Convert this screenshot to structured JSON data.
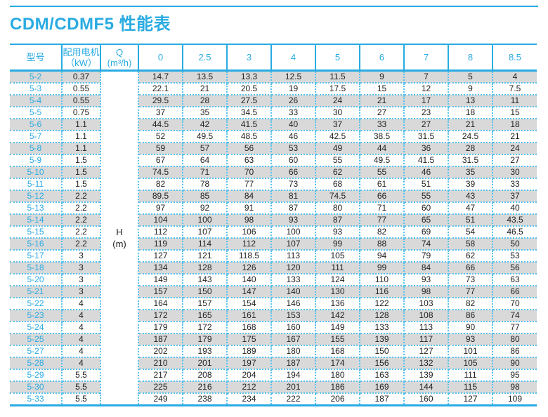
{
  "page": {
    "title": "CDM/CDMF5 性能表"
  },
  "colors": {
    "accent_blue": "#29abe2",
    "dotted_border_blue": "#58c2ed",
    "stripe_gray": "#d9d9d9",
    "data_text": "#222222"
  },
  "table": {
    "headers": {
      "model": "型号",
      "motor_line1": "配用电机",
      "motor_line2": "（kW）",
      "q_line1": "Q",
      "q_line2": "(m³/h)",
      "flow": [
        "0",
        "2.5",
        "3",
        "4",
        "5",
        "6",
        "7",
        "8",
        "8.5"
      ]
    },
    "h_column": {
      "line1": "H",
      "line2": "(m)"
    },
    "rows": [
      {
        "model": "5-2",
        "kw": "0.37",
        "values": [
          "14.7",
          "13.5",
          "13.3",
          "12.5",
          "11.5",
          "9",
          "7",
          "5",
          "4"
        ]
      },
      {
        "model": "5-3",
        "kw": "0.55",
        "values": [
          "22.1",
          "21",
          "20.5",
          "19",
          "17.5",
          "15",
          "12",
          "9",
          "7.5"
        ]
      },
      {
        "model": "5-4",
        "kw": "0.55",
        "values": [
          "29.5",
          "28",
          "27.5",
          "26",
          "24",
          "21",
          "17",
          "13",
          "11"
        ]
      },
      {
        "model": "5-5",
        "kw": "0.75",
        "values": [
          "37",
          "35",
          "34.5",
          "33",
          "30",
          "27",
          "23",
          "18",
          "15"
        ]
      },
      {
        "model": "5-6",
        "kw": "1.1",
        "values": [
          "44.5",
          "42",
          "41.5",
          "40",
          "37",
          "33",
          "27",
          "21",
          "18"
        ]
      },
      {
        "model": "5-7",
        "kw": "1.1",
        "values": [
          "52",
          "49.5",
          "48.5",
          "46",
          "42.5",
          "38.5",
          "31.5",
          "24.5",
          "21"
        ]
      },
      {
        "model": "5-8",
        "kw": "1.1",
        "values": [
          "59",
          "57",
          "56",
          "53",
          "49",
          "44",
          "36",
          "28",
          "24"
        ]
      },
      {
        "model": "5-9",
        "kw": "1.5",
        "values": [
          "67",
          "64",
          "63",
          "60",
          "55",
          "49.5",
          "41.5",
          "31.5",
          "27"
        ]
      },
      {
        "model": "5-10",
        "kw": "1.5",
        "values": [
          "74.5",
          "71",
          "70",
          "66",
          "62",
          "55",
          "46",
          "35",
          "30"
        ]
      },
      {
        "model": "5-11",
        "kw": "1.5",
        "values": [
          "82",
          "78",
          "77",
          "73",
          "68",
          "61",
          "51",
          "39",
          "33"
        ]
      },
      {
        "model": "5-12",
        "kw": "2.2",
        "values": [
          "89.5",
          "85",
          "84",
          "81",
          "74.5",
          "66",
          "55",
          "43",
          "37"
        ]
      },
      {
        "model": "5-13",
        "kw": "2.2",
        "values": [
          "97",
          "92",
          "91",
          "87",
          "80",
          "71",
          "60",
          "47",
          "40"
        ]
      },
      {
        "model": "5-14",
        "kw": "2.2",
        "values": [
          "104",
          "100",
          "98",
          "93",
          "87",
          "77",
          "65",
          "51",
          "43.5"
        ]
      },
      {
        "model": "5-15",
        "kw": "2.2",
        "values": [
          "112",
          "107",
          "106",
          "100",
          "93",
          "82",
          "69",
          "54",
          "46.5"
        ]
      },
      {
        "model": "5-16",
        "kw": "2.2",
        "values": [
          "119",
          "114",
          "112",
          "107",
          "99",
          "88",
          "74",
          "58",
          "50"
        ]
      },
      {
        "model": "5-17",
        "kw": "3",
        "values": [
          "127",
          "121",
          "118.5",
          "113",
          "105",
          "94",
          "79",
          "62",
          "53"
        ]
      },
      {
        "model": "5-18",
        "kw": "3",
        "values": [
          "134",
          "128",
          "126",
          "120",
          "111",
          "99",
          "84",
          "66",
          "56"
        ]
      },
      {
        "model": "5-20",
        "kw": "3",
        "values": [
          "149",
          "143",
          "140",
          "133",
          "124",
          "110",
          "93",
          "73",
          "63"
        ]
      },
      {
        "model": "5-21",
        "kw": "3",
        "values": [
          "157",
          "150",
          "147",
          "140",
          "130",
          "116",
          "98",
          "77",
          "66"
        ]
      },
      {
        "model": "5-22",
        "kw": "4",
        "values": [
          "164",
          "157",
          "154",
          "146",
          "136",
          "122",
          "103",
          "82",
          "70"
        ]
      },
      {
        "model": "5-23",
        "kw": "4",
        "values": [
          "172",
          "165",
          "161",
          "153",
          "142",
          "128",
          "108",
          "86",
          "74"
        ]
      },
      {
        "model": "5-24",
        "kw": "4",
        "values": [
          "179",
          "172",
          "168",
          "160",
          "149",
          "133",
          "113",
          "90",
          "77"
        ]
      },
      {
        "model": "5-25",
        "kw": "4",
        "values": [
          "187",
          "179",
          "175",
          "167",
          "155",
          "139",
          "117",
          "93",
          "80"
        ]
      },
      {
        "model": "5-27",
        "kw": "4",
        "values": [
          "202",
          "193",
          "189",
          "180",
          "168",
          "150",
          "127",
          "101",
          "86"
        ]
      },
      {
        "model": "5-28",
        "kw": "4",
        "values": [
          "210",
          "201",
          "197",
          "187",
          "174",
          "156",
          "132",
          "105",
          "90"
        ]
      },
      {
        "model": "5-29",
        "kw": "5.5",
        "values": [
          "217",
          "208",
          "204",
          "194",
          "180",
          "163",
          "139",
          "111",
          "95"
        ]
      },
      {
        "model": "5-30",
        "kw": "5.5",
        "values": [
          "225",
          "216",
          "212",
          "201",
          "186",
          "169",
          "144",
          "115",
          "98"
        ]
      },
      {
        "model": "5-33",
        "kw": "5.5",
        "values": [
          "249",
          "238",
          "234",
          "222",
          "206",
          "187",
          "160",
          "127",
          "109"
        ]
      }
    ]
  }
}
